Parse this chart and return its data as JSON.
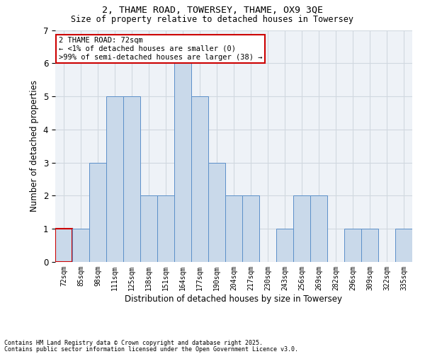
{
  "title": "2, THAME ROAD, TOWERSEY, THAME, OX9 3QE",
  "subtitle": "Size of property relative to detached houses in Towersey",
  "xlabel": "Distribution of detached houses by size in Towersey",
  "ylabel": "Number of detached properties",
  "categories": [
    "72sqm",
    "85sqm",
    "98sqm",
    "111sqm",
    "125sqm",
    "138sqm",
    "151sqm",
    "164sqm",
    "177sqm",
    "190sqm",
    "204sqm",
    "217sqm",
    "230sqm",
    "243sqm",
    "256sqm",
    "269sqm",
    "282sqm",
    "296sqm",
    "309sqm",
    "322sqm",
    "335sqm"
  ],
  "values": [
    1,
    1,
    3,
    5,
    5,
    2,
    2,
    6,
    5,
    3,
    2,
    2,
    0,
    1,
    2,
    2,
    0,
    1,
    1,
    0,
    1
  ],
  "bar_color": "#c9d9ea",
  "bar_edge_color": "#5b8fc9",
  "highlight_index": 0,
  "highlight_edge_color": "#cc0000",
  "ylim": [
    0,
    7
  ],
  "yticks": [
    0,
    1,
    2,
    3,
    4,
    5,
    6,
    7
  ],
  "grid_color": "#d0d8e0",
  "background_color": "#eef2f7",
  "annotation_text": "2 THAME ROAD: 72sqm\n← <1% of detached houses are smaller (0)\n>99% of semi-detached houses are larger (38) →",
  "annotation_box_color": "#cc0000",
  "footnote1": "Contains HM Land Registry data © Crown copyright and database right 2025.",
  "footnote2": "Contains public sector information licensed under the Open Government Licence v3.0."
}
